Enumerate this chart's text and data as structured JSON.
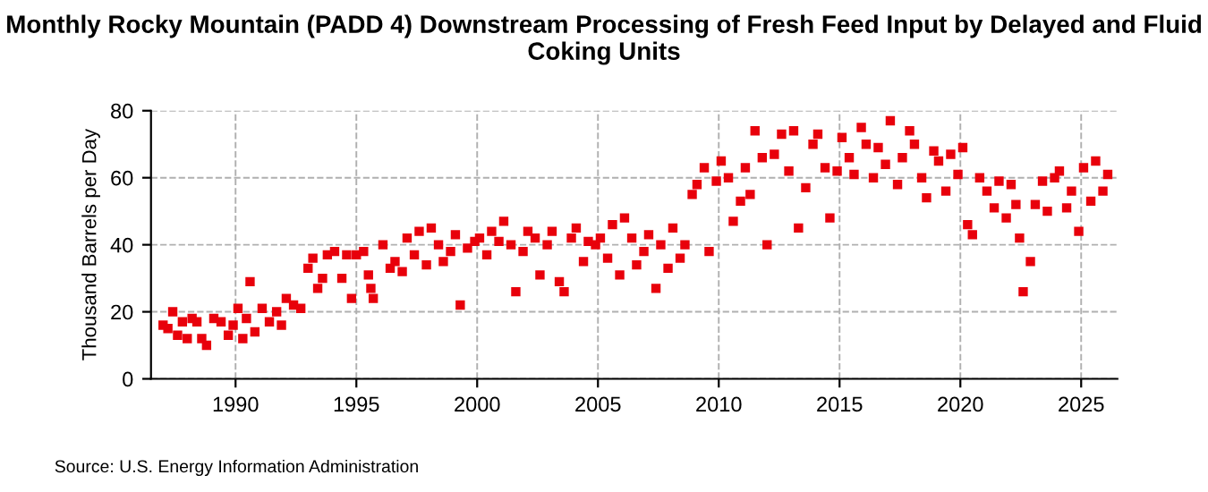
{
  "chart_data": {
    "type": "scatter",
    "title": "Monthly Rocky Mountain (PADD 4) Downstream Processing of Fresh Feed Input by Delayed and Fluid Coking Units",
    "ylabel": "Thousand Barrels per Day",
    "annotations": [
      "Source: U.S. Energy Information Administration"
    ],
    "x": [
      1987.0,
      1987.2,
      1987.4,
      1987.6,
      1987.8,
      1988.0,
      1988.2,
      1988.4,
      1988.6,
      1988.8,
      1989.1,
      1989.4,
      1989.7,
      1989.9,
      1990.1,
      1990.3,
      1990.45,
      1990.6,
      1990.8,
      1991.1,
      1991.4,
      1991.7,
      1991.9,
      1992.1,
      1992.4,
      1992.7,
      1993.0,
      1993.2,
      1993.4,
      1993.6,
      1993.8,
      1994.1,
      1994.4,
      1994.6,
      1994.8,
      1995.0,
      1995.3,
      1995.5,
      1995.6,
      1995.7,
      1996.1,
      1996.4,
      1996.6,
      1996.9,
      1997.1,
      1997.4,
      1997.6,
      1997.9,
      1998.1,
      1998.4,
      1998.6,
      1998.9,
      1999.1,
      1999.3,
      1999.6,
      1999.9,
      2000.1,
      2000.4,
      2000.6,
      2000.9,
      2001.1,
      2001.4,
      2001.6,
      2001.9,
      2002.1,
      2002.4,
      2002.6,
      2002.9,
      2003.1,
      2003.4,
      2003.6,
      2003.9,
      2004.1,
      2004.4,
      2004.6,
      2004.9,
      2005.1,
      2005.4,
      2005.6,
      2005.9,
      2006.1,
      2006.4,
      2006.6,
      2006.9,
      2007.1,
      2007.4,
      2007.6,
      2007.9,
      2008.1,
      2008.4,
      2008.6,
      2008.9,
      2009.1,
      2009.4,
      2009.6,
      2009.9,
      2010.1,
      2010.4,
      2010.6,
      2010.9,
      2011.1,
      2011.3,
      2011.5,
      2011.8,
      2012.0,
      2012.3,
      2012.6,
      2012.9,
      2013.1,
      2013.3,
      2013.6,
      2013.9,
      2014.1,
      2014.4,
      2014.6,
      2014.9,
      2015.1,
      2015.4,
      2015.6,
      2015.9,
      2016.1,
      2016.4,
      2016.6,
      2016.9,
      2017.1,
      2017.4,
      2017.6,
      2017.9,
      2018.1,
      2018.4,
      2018.6,
      2018.9,
      2019.1,
      2019.4,
      2019.6,
      2019.9,
      2020.1,
      2020.3,
      2020.5,
      2020.8,
      2021.1,
      2021.4,
      2021.6,
      2021.9,
      2022.1,
      2022.3,
      2022.45,
      2022.6,
      2022.9,
      2023.1,
      2023.4,
      2023.6,
      2023.9,
      2024.1,
      2024.4,
      2024.6,
      2024.9,
      2025.1,
      2025.4,
      2025.6,
      2025.9,
      2026.1
    ],
    "series": [
      {
        "color": "#e8000b",
        "values": [
          16,
          15,
          20,
          13,
          17,
          12,
          18,
          17,
          12,
          10,
          18,
          17,
          13,
          16,
          21,
          12,
          18,
          29,
          14,
          21,
          17,
          20,
          16,
          24,
          22,
          21,
          33,
          36,
          27,
          30,
          37,
          38,
          30,
          37,
          24,
          37,
          38,
          31,
          27,
          24,
          40,
          33,
          35,
          32,
          42,
          37,
          44,
          34,
          45,
          40,
          35,
          38,
          43,
          22,
          39,
          41,
          42,
          37,
          44,
          41,
          47,
          40,
          26,
          38,
          44,
          42,
          31,
          40,
          44,
          29,
          26,
          42,
          45,
          35,
          41,
          40,
          42,
          36,
          46,
          31,
          48,
          42,
          34,
          38,
          43,
          27,
          40,
          33,
          45,
          36,
          40,
          55,
          58,
          63,
          38,
          59,
          65,
          60,
          47,
          53,
          63,
          55,
          74,
          66,
          40,
          67,
          73,
          62,
          74,
          45,
          57,
          70,
          73,
          63,
          48,
          62,
          72,
          66,
          61,
          75,
          70,
          60,
          69,
          64,
          77,
          58,
          66,
          74,
          70,
          60,
          54,
          68,
          65,
          56,
          67,
          61,
          69,
          46,
          43,
          60,
          56,
          51,
          59,
          48,
          58,
          52,
          42,
          26,
          35,
          52,
          59,
          50,
          60,
          62,
          51,
          56,
          44,
          63,
          53,
          65,
          56,
          61
        ]
      }
    ],
    "xlim": [
      1986.5,
      2026.5
    ],
    "ylim": [
      0,
      80
    ],
    "xticks": [
      1990,
      1995,
      2000,
      2005,
      2010,
      2015,
      2020,
      2025
    ],
    "yticks": [
      0,
      20,
      40,
      60,
      80
    ],
    "grid": true,
    "marker": "square"
  }
}
